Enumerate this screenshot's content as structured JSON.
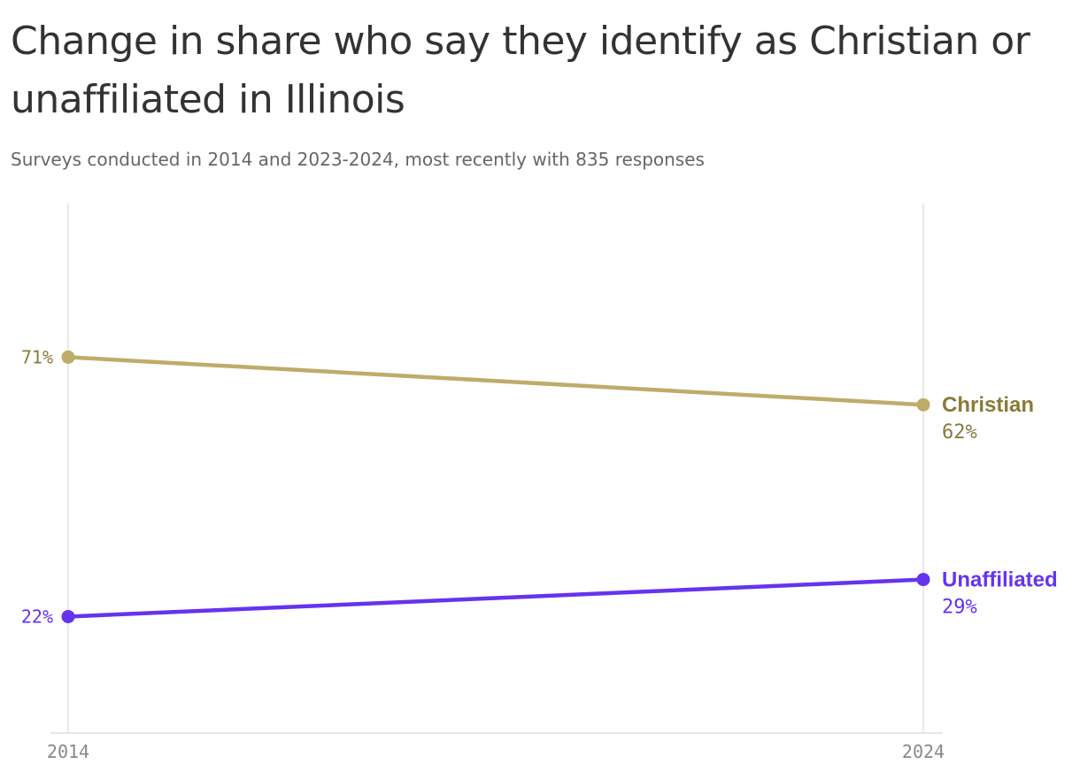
{
  "header": {
    "title": "Change in share who say they identify as Christian or unaffiliated in Illinois",
    "subtitle": "Surveys conducted in 2014 and 2023-2024, most recently with 835 responses"
  },
  "chart_data": {
    "type": "line",
    "title": "Change in share who say they identify as Christian or unaffiliated in Illinois",
    "subtitle": "Surveys conducted in 2014 and 2023-2024, most recently with 835 responses",
    "x": [
      "2014",
      "2024"
    ],
    "xlabel": "",
    "ylabel": "",
    "ylim": [
      0,
      100
    ],
    "grid": "vertical",
    "series": [
      {
        "name": "Christian",
        "values": [
          71,
          62
        ],
        "labels": [
          "71%",
          "62%"
        ],
        "color": "#bfab6a",
        "text_color": "#8a7a3a"
      },
      {
        "name": "Unaffiliated",
        "values": [
          22,
          29
        ],
        "labels": [
          "22%",
          "29%"
        ],
        "color": "#6633ee",
        "text_color": "#6633ee"
      }
    ]
  }
}
